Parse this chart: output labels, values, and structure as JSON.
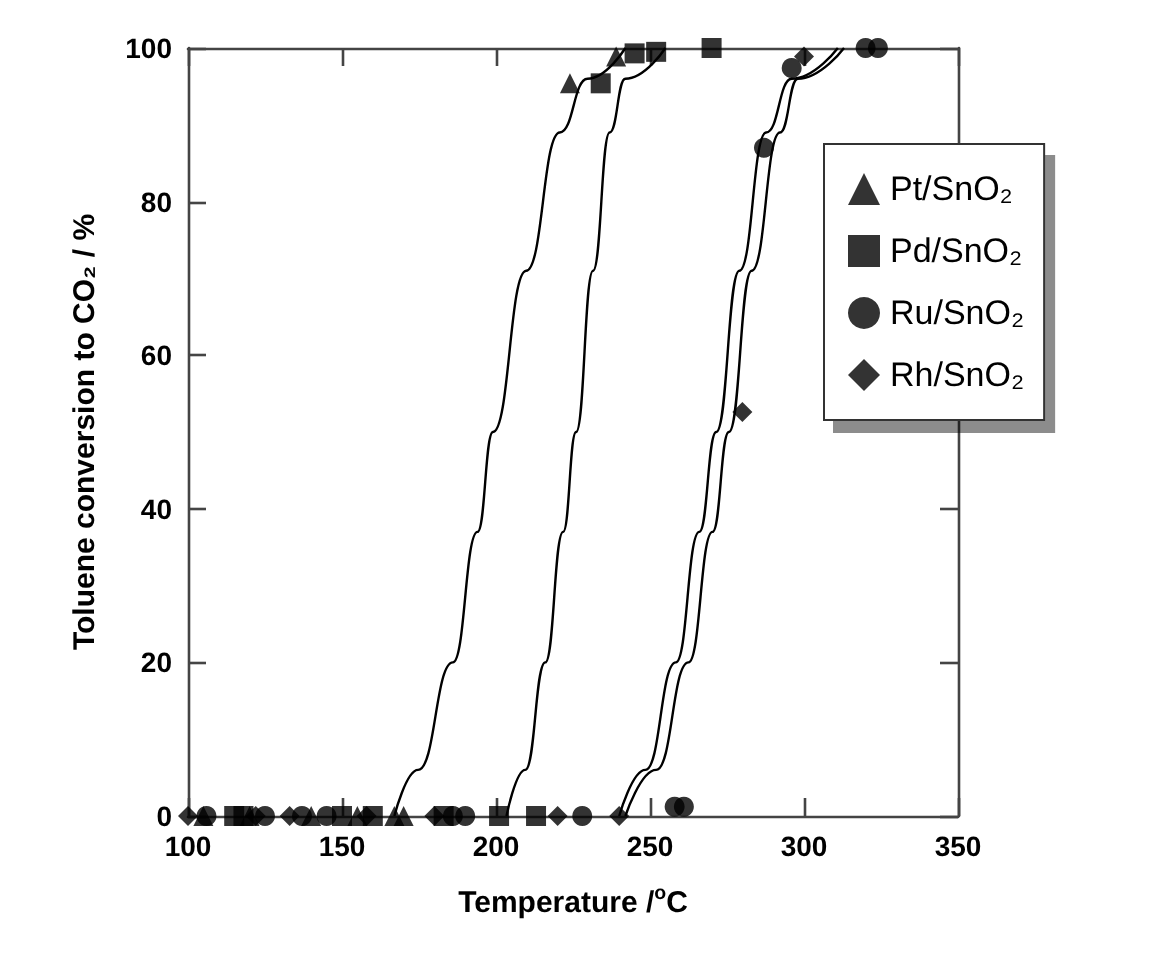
{
  "chart_data": {
    "type": "scatter",
    "xlabel": "Temperature /$^{o}$C",
    "ylabel": "Toluene conversion to CO₂ / %",
    "xlim": [
      100,
      350
    ],
    "xticks": [
      100,
      150,
      200,
      250,
      300,
      350
    ],
    "ylim": [
      0,
      100
    ],
    "yticks": [
      0,
      20,
      40,
      60,
      80,
      100
    ],
    "grid": false,
    "legend": "right",
    "series": [
      {
        "name": "Pt/SnO₂",
        "color": "#000000",
        "marker": "triangle",
        "x": [
          105,
          120,
          140,
          155,
          167,
          170,
          224,
          239
        ],
        "values": [
          0,
          0,
          0,
          0,
          0,
          0,
          95.4,
          98.9
        ]
      },
      {
        "name": "Pd/SnO₂",
        "color": "#000000",
        "marker": "square",
        "x": [
          115,
          118,
          150,
          160,
          183,
          201,
          213,
          234,
          245,
          252,
          270
        ],
        "values": [
          0,
          0,
          0,
          0,
          0,
          0,
          0,
          95.4,
          99.3,
          99.5,
          100
        ]
      },
      {
        "name": "Ru/SnO₂",
        "color": "#000000",
        "marker": "circle",
        "x": [
          106,
          125,
          137,
          145,
          186,
          190,
          228,
          258,
          261,
          287,
          296,
          320,
          324
        ],
        "values": [
          0,
          0,
          0,
          0,
          0,
          0,
          0,
          1.2,
          1.2,
          87,
          97.4,
          100,
          100
        ]
      },
      {
        "name": "Rh/SnO₂",
        "color": "#000000",
        "marker": "diamond",
        "x": [
          100,
          122,
          133,
          158,
          180,
          220,
          240,
          280,
          300
        ],
        "values": [
          0,
          0,
          0,
          0,
          0,
          0,
          0,
          52.6,
          98.9
        ]
      },
      {
        "type": "line",
        "color": "#000000",
        "marker": "none",
        "x": [
          167,
          174.7,
          186,
          194,
          199,
          209.8,
          220.7,
          229.7,
          242
        ],
        "values": [
          0,
          6,
          20,
          37,
          50,
          71,
          89,
          96,
          100
        ]
      },
      {
        "type": "line",
        "color": "#000000",
        "marker": "none",
        "x": [
          203.4,
          209.5,
          216,
          221.8,
          226,
          231.5,
          236.9,
          242,
          255
        ],
        "values": [
          0,
          6,
          20,
          37,
          50,
          71,
          89,
          96,
          100
        ]
      },
      {
        "type": "line",
        "color": "#000000",
        "marker": "none",
        "x": [
          240,
          248.5,
          258.4,
          266,
          271.5,
          279,
          287.7,
          296,
          311
        ],
        "values": [
          0,
          6,
          20,
          37,
          50,
          71,
          89,
          96,
          100
        ]
      },
      {
        "type": "line",
        "color": "#000000",
        "marker": "none",
        "x": [
          242,
          252,
          262.5,
          270.3,
          275.6,
          283,
          292.2,
          298,
          313
        ],
        "values": [
          0,
          6,
          20,
          37,
          50,
          71,
          89,
          96,
          100
        ]
      }
    ]
  }
}
